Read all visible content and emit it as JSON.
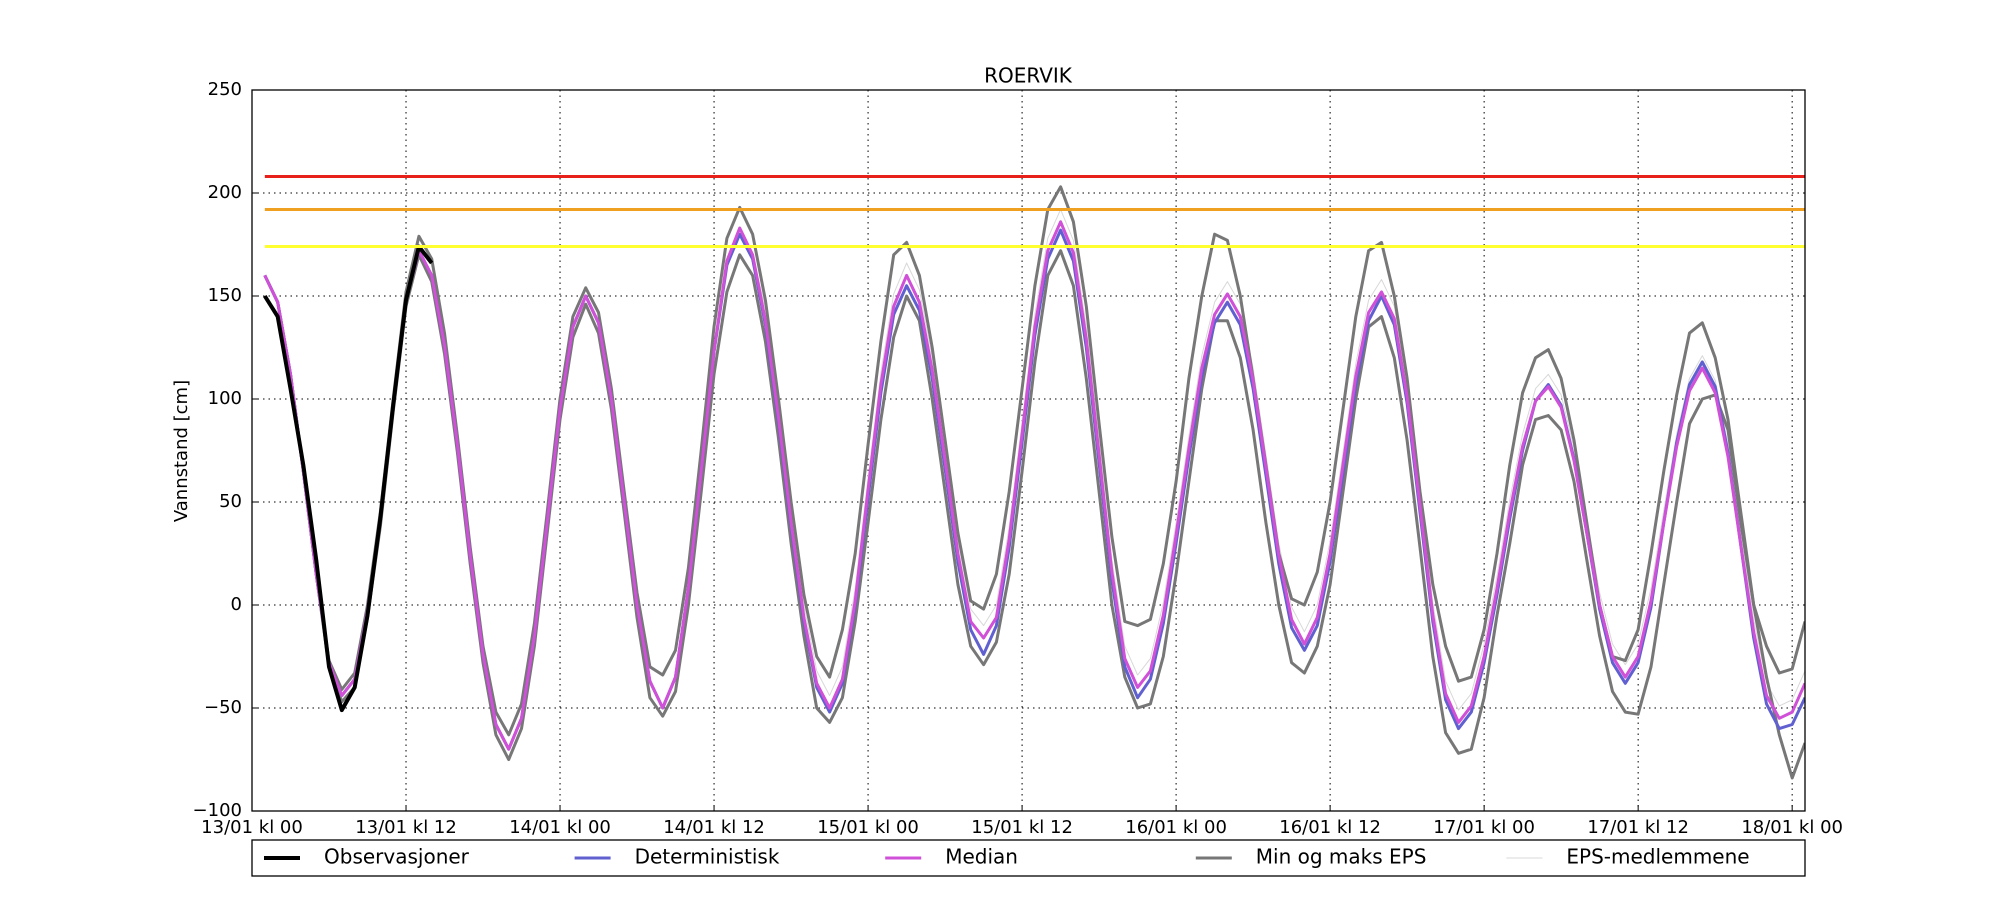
{
  "chart_data": {
    "type": "line",
    "title": "ROERVIK",
    "ylabel": "Vannstand [cm]",
    "x": [
      1,
      2,
      3,
      4,
      5,
      6,
      7,
      8,
      9,
      10,
      11,
      12,
      13,
      14,
      15,
      16,
      17,
      18,
      19,
      20,
      21,
      22,
      23,
      24,
      25,
      26,
      27,
      28,
      29,
      30,
      31,
      32,
      33,
      34,
      35,
      36,
      37,
      38,
      39,
      40,
      41,
      42,
      43,
      44,
      45,
      46,
      47,
      48,
      49,
      50,
      51,
      52,
      53,
      54,
      55,
      56,
      57,
      58,
      59,
      60,
      61,
      62,
      63,
      64,
      65,
      66,
      67,
      68,
      69,
      70,
      71,
      72,
      73,
      74,
      75,
      76,
      77,
      78,
      79,
      80,
      81,
      82,
      83,
      84,
      85,
      86,
      87,
      88,
      89,
      90,
      91,
      92,
      93,
      94,
      95,
      96,
      97,
      98,
      99,
      100,
      101,
      102,
      103,
      104,
      105,
      106,
      107,
      108,
      109,
      110,
      111,
      112,
      113,
      114,
      115,
      116,
      117,
      118,
      119,
      120,
      121
    ],
    "xlim": [
      0,
      121
    ],
    "xticks": [
      {
        "value": 0,
        "label": "13/01 kl 00"
      },
      {
        "value": 12,
        "label": "13/01 kl 12"
      },
      {
        "value": 24,
        "label": "14/01 kl 00"
      },
      {
        "value": 36,
        "label": "14/01 kl 12"
      },
      {
        "value": 48,
        "label": "15/01 kl 00"
      },
      {
        "value": 60,
        "label": "15/01 kl 12"
      },
      {
        "value": 72,
        "label": "16/01 kl 00"
      },
      {
        "value": 84,
        "label": "16/01 kl 12"
      },
      {
        "value": 96,
        "label": "17/01 kl 00"
      },
      {
        "value": 108,
        "label": "17/01 kl 12"
      },
      {
        "value": 120,
        "label": "18/01 kl 00"
      }
    ],
    "ylim": [
      -100,
      250
    ],
    "yticks": [
      {
        "value": -100,
        "label": "−100"
      },
      {
        "value": -50,
        "label": "−50"
      },
      0,
      50,
      100,
      150,
      200,
      250
    ],
    "grid": true,
    "reference_lines": [
      {
        "value": 208,
        "color": "#e8201c"
      },
      {
        "value": 192,
        "color": "#f0a020"
      },
      {
        "value": 174,
        "color": "#ffff30"
      }
    ],
    "series": [
      {
        "name": "Observasjoner",
        "color": "#000000",
        "values": [
          150,
          140,
          105,
          68,
          22,
          -30,
          -51,
          -40,
          -5,
          42,
          97,
          148,
          174,
          166,
          null,
          null,
          null,
          null,
          null,
          null,
          null,
          null,
          null,
          null,
          null,
          null,
          null,
          null,
          null,
          null,
          null,
          null,
          null,
          null,
          null,
          null,
          null,
          null,
          null,
          null,
          null,
          null,
          null,
          null,
          null,
          null,
          null,
          null,
          null,
          null,
          null,
          null,
          null,
          null,
          null,
          null,
          null,
          null,
          null,
          null,
          null,
          null,
          null,
          null,
          null,
          null,
          null,
          null,
          null,
          null,
          null,
          null,
          null,
          null,
          null,
          null,
          null,
          null,
          null,
          null,
          null,
          null,
          null,
          null,
          null,
          null,
          null,
          null,
          null,
          null,
          null,
          null,
          null,
          null,
          null,
          null,
          null,
          null,
          null,
          null,
          null,
          null,
          null,
          null,
          null,
          null,
          null,
          null,
          null,
          null,
          null,
          null,
          null,
          null,
          null,
          null,
          null,
          null,
          null,
          null,
          null
        ]
      },
      {
        "name": "Deterministisk",
        "color": "#6060d0",
        "values": [
          160,
          147,
          112,
          65,
          15,
          -28,
          -44,
          -36,
          -3,
          42,
          97,
          148,
          172,
          160,
          126,
          78,
          24,
          -24,
          -58,
          -70,
          -55,
          -15,
          40,
          95,
          135,
          150,
          137,
          100,
          50,
          0,
          -37,
          -50,
          -35,
          8,
          65,
          123,
          165,
          180,
          168,
          136,
          90,
          38,
          -8,
          -40,
          -52,
          -38,
          0,
          52,
          103,
          141,
          155,
          143,
          110,
          66,
          21,
          -12,
          -24,
          -10,
          28,
          79,
          131,
          168,
          182,
          167,
          125,
          69,
          12,
          -30,
          -45,
          -36,
          -9,
          30,
          72,
          111,
          137,
          147,
          136,
          105,
          63,
          20,
          -11,
          -22,
          -10,
          21,
          64,
          107,
          138,
          150,
          136,
          98,
          45,
          -8,
          -46,
          -60,
          -52,
          -28,
          5,
          42,
          75,
          99,
          107,
          97,
          71,
          35,
          -2,
          -28,
          -38,
          -28,
          -1,
          40,
          79,
          107,
          118,
          106,
          74,
          29,
          -16,
          -48,
          -60,
          -58,
          -45
        ]
      },
      {
        "name": "Median",
        "color": "#d050d8",
        "values": [
          160,
          147,
          112,
          65,
          15,
          -28,
          -44,
          -36,
          -3,
          42,
          97,
          148,
          172,
          160,
          126,
          78,
          24,
          -24,
          -58,
          -70,
          -55,
          -15,
          40,
          95,
          135,
          150,
          137,
          100,
          50,
          0,
          -37,
          -50,
          -35,
          8,
          65,
          123,
          167,
          183,
          170,
          138,
          92,
          40,
          -6,
          -38,
          -50,
          -36,
          2,
          56,
          107,
          145,
          160,
          147,
          114,
          70,
          25,
          -8,
          -16,
          -6,
          32,
          83,
          135,
          172,
          186,
          171,
          129,
          73,
          16,
          -26,
          -40,
          -32,
          -5,
          34,
          76,
          115,
          141,
          151,
          140,
          109,
          67,
          24,
          -7,
          -19,
          -6,
          25,
          68,
          111,
          142,
          152,
          139,
          101,
          48,
          -5,
          -43,
          -57,
          -49,
          -25,
          8,
          45,
          77,
          99,
          106,
          96,
          70,
          35,
          0,
          -25,
          -35,
          -25,
          2,
          40,
          77,
          104,
          115,
          103,
          72,
          29,
          -13,
          -44,
          -55,
          -52,
          -38
        ]
      },
      {
        "name": "Min og maks EPS",
        "color": "#777777",
        "lower": [
          160,
          147,
          112,
          65,
          15,
          -30,
          -47,
          -40,
          -6,
          38,
          94,
          145,
          170,
          157,
          122,
          74,
          20,
          -28,
          -63,
          -75,
          -60,
          -20,
          35,
          90,
          130,
          146,
          132,
          95,
          45,
          -6,
          -45,
          -54,
          -42,
          0,
          55,
          112,
          152,
          170,
          160,
          128,
          82,
          30,
          -15,
          -50,
          -57,
          -45,
          -8,
          40,
          90,
          130,
          150,
          138,
          100,
          55,
          10,
          -20,
          -29,
          -18,
          15,
          65,
          118,
          160,
          172,
          155,
          110,
          55,
          0,
          -35,
          -50,
          -48,
          -25,
          15,
          60,
          105,
          138,
          138,
          120,
          85,
          40,
          0,
          -28,
          -33,
          -20,
          10,
          55,
          100,
          135,
          140,
          120,
          80,
          28,
          -25,
          -62,
          -72,
          -70,
          -45,
          -5,
          30,
          68,
          90,
          92,
          85,
          60,
          22,
          -15,
          -42,
          -52,
          -53,
          -30,
          10,
          50,
          88,
          100,
          102,
          85,
          40,
          0,
          -35,
          -63,
          -84,
          -67
        ],
        "upper": [
          160,
          147,
          112,
          65,
          15,
          -27,
          -41,
          -33,
          0,
          45,
          100,
          152,
          179,
          168,
          132,
          82,
          28,
          -20,
          -52,
          -63,
          -48,
          -9,
          45,
          100,
          140,
          154,
          142,
          105,
          55,
          6,
          -30,
          -34,
          -22,
          18,
          75,
          135,
          178,
          193,
          180,
          148,
          101,
          50,
          5,
          -25,
          -35,
          -12,
          25,
          78,
          128,
          170,
          176,
          160,
          125,
          80,
          35,
          2,
          -2,
          15,
          55,
          105,
          155,
          192,
          203,
          186,
          145,
          88,
          33,
          -8,
          -10,
          -7,
          20,
          60,
          110,
          150,
          180,
          177,
          150,
          110,
          68,
          25,
          3,
          0,
          16,
          50,
          95,
          140,
          172,
          176,
          150,
          110,
          55,
          10,
          -20,
          -37,
          -35,
          -12,
          25,
          68,
          103,
          120,
          124,
          110,
          80,
          40,
          0,
          -25,
          -27,
          -12,
          25,
          65,
          102,
          132,
          137,
          120,
          90,
          45,
          0,
          -20,
          -33,
          -31,
          -8
        ]
      },
      {
        "name": "EPS-medlemmene",
        "color": "#d8d8d8",
        "values": [
          160,
          147,
          112,
          65,
          15,
          -28,
          -44,
          -36,
          -3,
          42,
          97,
          148,
          172,
          160,
          126,
          78,
          24,
          -24,
          -58,
          -70,
          -55,
          -15,
          40,
          95,
          135,
          150,
          137,
          100,
          50,
          0,
          -37,
          -50,
          -35,
          8,
          65,
          123,
          167,
          183,
          170,
          144,
          98,
          46,
          0,
          -32,
          -44,
          -30,
          8,
          62,
          113,
          151,
          166,
          153,
          120,
          76,
          31,
          -2,
          -10,
          0,
          38,
          89,
          141,
          178,
          192,
          177,
          135,
          79,
          22,
          -20,
          -34,
          -26,
          1,
          40,
          82,
          121,
          147,
          157,
          146,
          115,
          73,
          30,
          -1,
          -13,
          0,
          31,
          74,
          117,
          148,
          158,
          145,
          107,
          54,
          1,
          -37,
          -51,
          -43,
          -19,
          14,
          51,
          83,
          105,
          112,
          102,
          76,
          41,
          6,
          -19,
          -29,
          -19,
          8,
          46,
          83,
          110,
          121,
          109,
          78,
          35,
          -7,
          -38,
          -49,
          -46,
          -32
        ]
      }
    ]
  }
}
